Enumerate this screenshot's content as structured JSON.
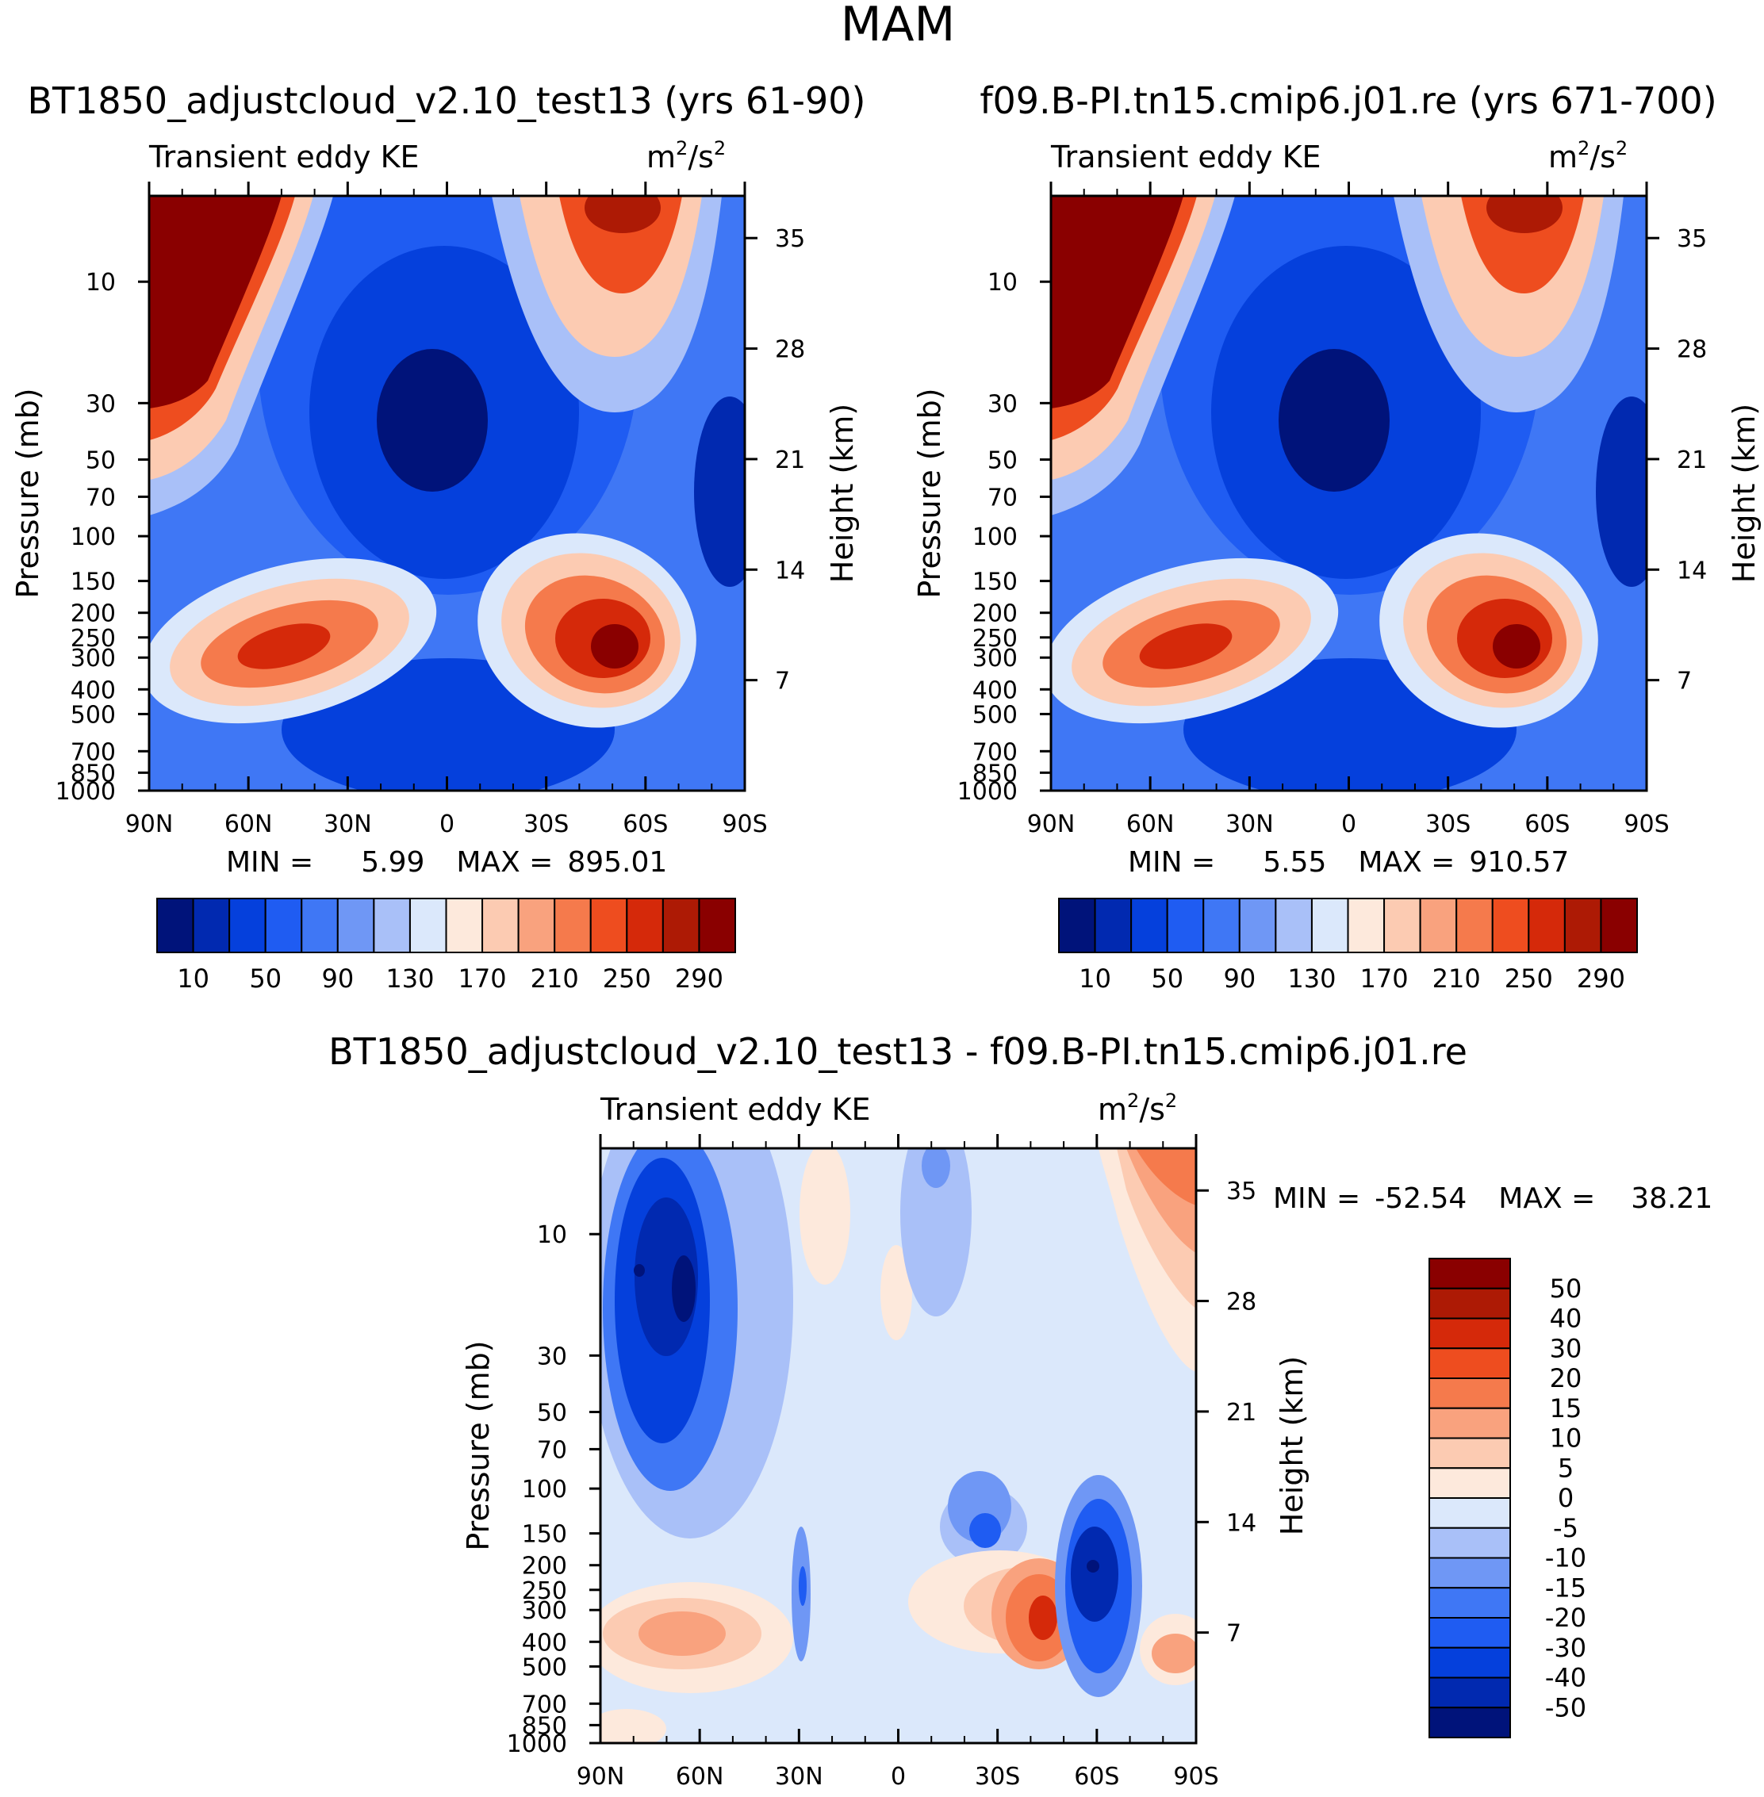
{
  "chart_data": {
    "type": "contour",
    "title": "MAM",
    "x_ticks": [
      "90N",
      "60N",
      "30N",
      "0",
      "30S",
      "60S",
      "90S"
    ],
    "pressure_ticks": [
      "10",
      "30",
      "50",
      "70",
      "100",
      "150",
      "200",
      "250",
      "300",
      "400",
      "500",
      "700",
      "850",
      "1000"
    ],
    "height_ticks": [
      "35",
      "28",
      "21",
      "14",
      "7"
    ],
    "panels": [
      {
        "id": "top-left",
        "case_title": "BT1850_adjustcloud_v2.10_test13 (yrs 61-90)",
        "variable": "Transient eddy KE",
        "units": "m²/s²",
        "units_base": "m",
        "units_mid": "/s",
        "ylabel_left": "Pressure (mb)",
        "ylabel_right": "Height (km)",
        "min_label": "MIN =",
        "min": "5.99",
        "max_label": "MAX =",
        "max": "895.01",
        "colorbar_labels": [
          "10",
          "50",
          "90",
          "130",
          "170",
          "210",
          "250",
          "290"
        ]
      },
      {
        "id": "top-right",
        "case_title": "f09.B-PI.tn15.cmip6.j01.re (yrs 671-700)",
        "variable": "Transient eddy KE",
        "units": "m²/s²",
        "units_base": "m",
        "units_mid": "/s",
        "ylabel_left": "Pressure (mb)",
        "ylabel_right": "Height (km)",
        "min_label": "MIN =",
        "min": "5.55",
        "max_label": "MAX =",
        "max": "910.57",
        "colorbar_labels": [
          "10",
          "50",
          "90",
          "130",
          "170",
          "210",
          "250",
          "290"
        ]
      },
      {
        "id": "bottom-diff",
        "case_title": "BT1850_adjustcloud_v2.10_test13 - f09.B-PI.tn15.cmip6.j01.re",
        "variable": "Transient eddy KE",
        "units": "m²/s²",
        "units_base": "m",
        "units_mid": "/s",
        "ylabel_left": "Pressure (mb)",
        "ylabel_right": "Height (km)",
        "min_label": "MIN =",
        "min": "-52.54",
        "max_label": "MAX =",
        "max": "38.21",
        "colorbar_labels": [
          "50",
          "40",
          "30",
          "20",
          "15",
          "10",
          "5",
          "0",
          "-5",
          "-10",
          "-15",
          "-20",
          "-30",
          "-40",
          "-50"
        ]
      }
    ],
    "colors": {
      "blue_red_16": [
        "#00137a",
        "#0129b0",
        "#0540dc",
        "#1f5cf2",
        "#3f77f5",
        "#6f97f5",
        "#a9c0f8",
        "#dbe8fb",
        "#fde9dc",
        "#fccbb2",
        "#f9a27e",
        "#f57a4c",
        "#ee4d1f",
        "#d5290a",
        "#ad1a05",
        "#8a0000"
      ]
    }
  }
}
